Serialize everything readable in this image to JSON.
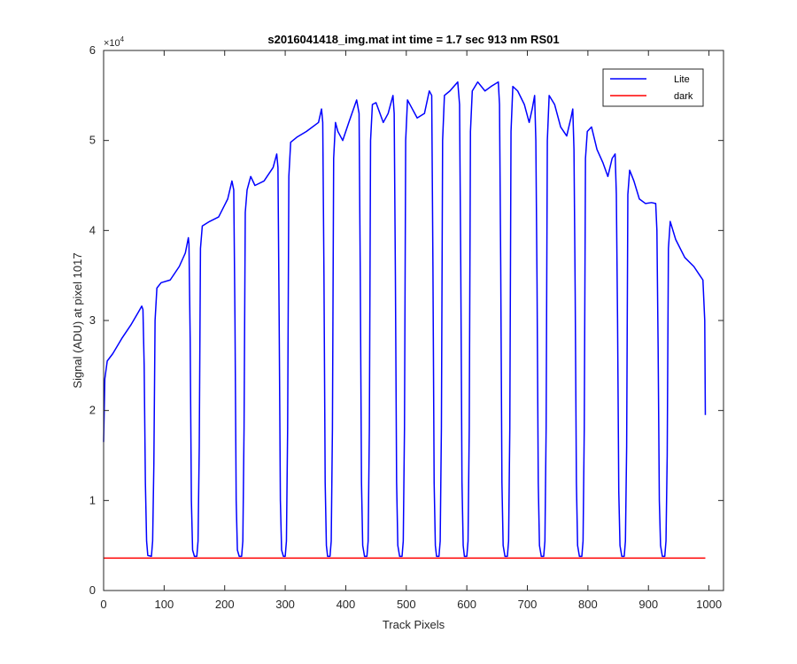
{
  "chart_data": {
    "type": "line",
    "title": "s2016041418_img.mat int time = 1.7 sec  913 nm RS01",
    "xlabel": "Track Pixels",
    "ylabel": "Signal (ADU) at pixel 1017",
    "xlim": [
      0,
      1024
    ],
    "ylim": [
      0,
      60000
    ],
    "xticks": [
      0,
      100,
      200,
      300,
      400,
      500,
      600,
      700,
      800,
      900,
      1000
    ],
    "yticks": [
      0,
      1,
      2,
      3,
      4,
      5,
      6
    ],
    "y_multiplier_label": "×10",
    "y_multiplier_exponent": "4",
    "grid": false,
    "legend_location": "top-right",
    "colors": {
      "lite": "#0000ff",
      "dark": "#ff0000",
      "axis": "#262626"
    },
    "series": [
      {
        "name": "Lite",
        "color": "#0000ff",
        "points": [
          [
            0,
            16500
          ],
          [
            2,
            23500
          ],
          [
            6,
            25500
          ],
          [
            15,
            26300
          ],
          [
            30,
            28000
          ],
          [
            45,
            29500
          ],
          [
            58,
            31000
          ],
          [
            63,
            31600
          ],
          [
            65,
            31200
          ],
          [
            67,
            25000
          ],
          [
            69,
            12000
          ],
          [
            71,
            5500
          ],
          [
            73,
            3900
          ],
          [
            79,
            3800
          ],
          [
            81,
            5500
          ],
          [
            83,
            14000
          ],
          [
            85,
            30000
          ],
          [
            88,
            33600
          ],
          [
            95,
            34200
          ],
          [
            110,
            34500
          ],
          [
            125,
            36000
          ],
          [
            135,
            37500
          ],
          [
            140,
            39200
          ],
          [
            141,
            38500
          ],
          [
            143,
            28000
          ],
          [
            145,
            10000
          ],
          [
            147,
            4500
          ],
          [
            150,
            3800
          ],
          [
            154,
            3800
          ],
          [
            156,
            5500
          ],
          [
            158,
            16000
          ],
          [
            160,
            38000
          ],
          [
            163,
            40500
          ],
          [
            175,
            41000
          ],
          [
            190,
            41500
          ],
          [
            205,
            43500
          ],
          [
            212,
            45500
          ],
          [
            215,
            44500
          ],
          [
            217,
            30000
          ],
          [
            219,
            10000
          ],
          [
            221,
            4500
          ],
          [
            224,
            3800
          ],
          [
            228,
            3800
          ],
          [
            230,
            5500
          ],
          [
            232,
            18000
          ],
          [
            234,
            42000
          ],
          [
            237,
            44500
          ],
          [
            243,
            46000
          ],
          [
            250,
            45000
          ],
          [
            265,
            45500
          ],
          [
            280,
            47000
          ],
          [
            286,
            48500
          ],
          [
            288,
            47000
          ],
          [
            290,
            30000
          ],
          [
            292,
            10000
          ],
          [
            294,
            4500
          ],
          [
            297,
            3800
          ],
          [
            300,
            3800
          ],
          [
            302,
            5500
          ],
          [
            304,
            18000
          ],
          [
            306,
            46000
          ],
          [
            309,
            49800
          ],
          [
            320,
            50400
          ],
          [
            335,
            51000
          ],
          [
            355,
            52000
          ],
          [
            360,
            53500
          ],
          [
            362,
            52000
          ],
          [
            364,
            35000
          ],
          [
            366,
            12000
          ],
          [
            368,
            5000
          ],
          [
            370,
            3800
          ],
          [
            374,
            3800
          ],
          [
            376,
            5500
          ],
          [
            378,
            18000
          ],
          [
            380,
            48000
          ],
          [
            383,
            52000
          ],
          [
            387,
            51000
          ],
          [
            395,
            50000
          ],
          [
            405,
            52000
          ],
          [
            418,
            54500
          ],
          [
            422,
            53000
          ],
          [
            424,
            35000
          ],
          [
            426,
            12000
          ],
          [
            428,
            5000
          ],
          [
            431,
            3800
          ],
          [
            435,
            3800
          ],
          [
            437,
            5500
          ],
          [
            439,
            18000
          ],
          [
            441,
            50000
          ],
          [
            444,
            54000
          ],
          [
            450,
            54200
          ],
          [
            462,
            52000
          ],
          [
            470,
            53000
          ],
          [
            478,
            55000
          ],
          [
            480,
            53000
          ],
          [
            482,
            35000
          ],
          [
            484,
            12000
          ],
          [
            486,
            5000
          ],
          [
            489,
            3800
          ],
          [
            493,
            3800
          ],
          [
            495,
            5500
          ],
          [
            497,
            18000
          ],
          [
            499,
            50000
          ],
          [
            502,
            54500
          ],
          [
            510,
            53500
          ],
          [
            518,
            52500
          ],
          [
            530,
            53000
          ],
          [
            538,
            55500
          ],
          [
            542,
            55000
          ],
          [
            544,
            36000
          ],
          [
            546,
            12000
          ],
          [
            548,
            5000
          ],
          [
            550,
            3800
          ],
          [
            554,
            3800
          ],
          [
            556,
            5500
          ],
          [
            558,
            18000
          ],
          [
            560,
            50000
          ],
          [
            563,
            55000
          ],
          [
            572,
            55500
          ],
          [
            585,
            56500
          ],
          [
            588,
            54000
          ],
          [
            590,
            36000
          ],
          [
            592,
            12000
          ],
          [
            594,
            5000
          ],
          [
            596,
            3800
          ],
          [
            600,
            3800
          ],
          [
            602,
            5500
          ],
          [
            604,
            18000
          ],
          [
            606,
            51000
          ],
          [
            609,
            55500
          ],
          [
            618,
            56500
          ],
          [
            630,
            55500
          ],
          [
            640,
            56000
          ],
          [
            652,
            56500
          ],
          [
            654,
            54000
          ],
          [
            656,
            36000
          ],
          [
            658,
            12000
          ],
          [
            660,
            5000
          ],
          [
            663,
            3800
          ],
          [
            667,
            3800
          ],
          [
            669,
            5500
          ],
          [
            671,
            18000
          ],
          [
            673,
            51000
          ],
          [
            676,
            56000
          ],
          [
            684,
            55500
          ],
          [
            695,
            54000
          ],
          [
            703,
            52000
          ],
          [
            708,
            53500
          ],
          [
            712,
            55000
          ],
          [
            714,
            50000
          ],
          [
            716,
            34000
          ],
          [
            718,
            12000
          ],
          [
            720,
            5000
          ],
          [
            723,
            3800
          ],
          [
            727,
            3800
          ],
          [
            729,
            5500
          ],
          [
            731,
            18000
          ],
          [
            733,
            50000
          ],
          [
            736,
            55000
          ],
          [
            745,
            54000
          ],
          [
            755,
            51500
          ],
          [
            765,
            50500
          ],
          [
            772,
            52500
          ],
          [
            775,
            53500
          ],
          [
            777,
            49000
          ],
          [
            779,
            33000
          ],
          [
            781,
            12000
          ],
          [
            783,
            5000
          ],
          [
            786,
            3800
          ],
          [
            790,
            3800
          ],
          [
            792,
            5500
          ],
          [
            794,
            18000
          ],
          [
            796,
            48000
          ],
          [
            799,
            51000
          ],
          [
            806,
            51500
          ],
          [
            815,
            49000
          ],
          [
            825,
            47500
          ],
          [
            833,
            46000
          ],
          [
            840,
            48000
          ],
          [
            845,
            48500
          ],
          [
            847,
            44000
          ],
          [
            849,
            30000
          ],
          [
            851,
            11000
          ],
          [
            853,
            5000
          ],
          [
            856,
            3800
          ],
          [
            860,
            3800
          ],
          [
            862,
            5500
          ],
          [
            864,
            16000
          ],
          [
            866,
            44000
          ],
          [
            869,
            46700
          ],
          [
            876,
            45500
          ],
          [
            885,
            43500
          ],
          [
            895,
            43000
          ],
          [
            905,
            43100
          ],
          [
            912,
            43000
          ],
          [
            914,
            40000
          ],
          [
            916,
            27000
          ],
          [
            918,
            10000
          ],
          [
            920,
            5000
          ],
          [
            923,
            3800
          ],
          [
            927,
            3800
          ],
          [
            929,
            5500
          ],
          [
            931,
            15000
          ],
          [
            933,
            38000
          ],
          [
            936,
            41000
          ],
          [
            945,
            39000
          ],
          [
            960,
            37000
          ],
          [
            975,
            36000
          ],
          [
            985,
            35000
          ],
          [
            990,
            34500
          ],
          [
            993,
            30000
          ],
          [
            994,
            19500
          ]
        ]
      },
      {
        "name": "dark",
        "color": "#ff0000",
        "points": [
          [
            0,
            3600
          ],
          [
            994,
            3600
          ]
        ]
      }
    ]
  }
}
